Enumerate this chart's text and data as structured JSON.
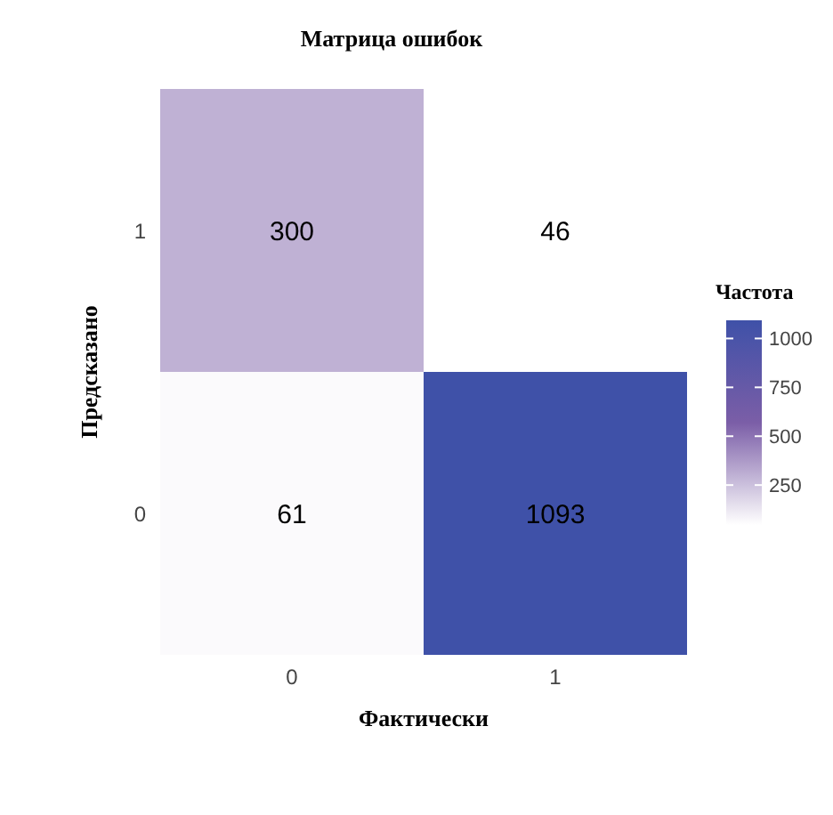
{
  "chart_data": {
    "type": "heatmap",
    "title": "Матрица ошибок",
    "xlabel": "Фактически",
    "ylabel": "Предсказано",
    "clabel": "Частота",
    "categories": [
      "0",
      "1"
    ],
    "y_categories": [
      "1",
      "0"
    ],
    "cells": [
      [
        300,
        46
      ],
      [
        61,
        1093
      ]
    ],
    "data_labels": true,
    "clim": [
      46,
      1093
    ],
    "cticks": [
      250,
      500,
      750,
      1000
    ]
  }
}
